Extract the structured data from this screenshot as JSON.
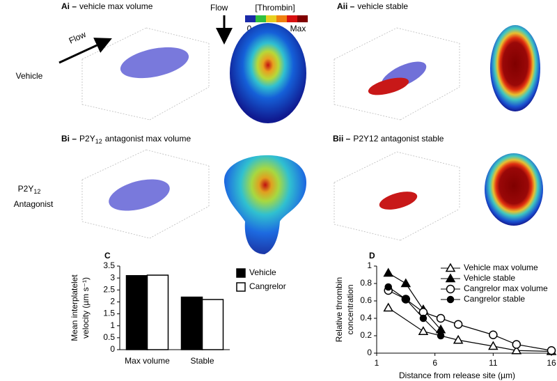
{
  "figure": {
    "panels": [
      {
        "label": "Ai –",
        "title": "vehicle max volume"
      },
      {
        "label": "Aii –",
        "title": "vehicle stable"
      },
      {
        "label": "Bi –",
        "title": "P2Y",
        "title_sub": "12",
        "title_rest": "antagonist max volume"
      },
      {
        "label": "Bii –",
        "title": "P2Y12 antagonist stable"
      }
    ],
    "flow_label": "Flow",
    "colorbar": {
      "title": "[Thrombin]",
      "min_label": "0",
      "max_label": "Max"
    },
    "rows": [
      {
        "label": "Vehicle"
      },
      {
        "label": "P2Y",
        "label_sub": "12",
        "label_line2": "Antagonist"
      }
    ]
  },
  "chart_data": [
    {
      "type": "bar",
      "panel": "C",
      "categories": [
        "Max volume",
        "Stable"
      ],
      "series": [
        {
          "name": "Vehicle",
          "color": "#000000",
          "values": [
            3.1,
            2.2
          ]
        },
        {
          "name": "Cangrelor",
          "color": "#ffffff",
          "values": [
            3.12,
            2.1
          ]
        }
      ],
      "y_label": [
        "Mean interplatelet",
        "velocity (µm s⁻¹)"
      ],
      "ylim": [
        0,
        3.5
      ],
      "yticks": [
        0,
        0.5,
        1,
        1.5,
        2,
        2.5,
        3,
        3.5
      ],
      "legend": "upper right"
    },
    {
      "type": "line",
      "panel": "D",
      "series": [
        {
          "name": "Vehicle max volume",
          "color": "#000000",
          "marker": "triangle-open",
          "x": [
            2,
            5,
            8,
            11,
            13,
            16
          ],
          "values": [
            0.52,
            0.25,
            0.15,
            0.08,
            0.03,
            0.02
          ]
        },
        {
          "name": "Vehicle stable",
          "color": "#000000",
          "marker": "triangle-filled",
          "x": [
            2,
            3.5,
            5,
            6.5
          ],
          "values": [
            0.92,
            0.8,
            0.5,
            0.27
          ]
        },
        {
          "name": "Cangrelor max volume",
          "color": "#000000",
          "marker": "circle-open",
          "x": [
            2,
            3.5,
            5,
            6.5,
            8,
            11,
            13,
            16
          ],
          "values": [
            0.72,
            0.62,
            0.47,
            0.4,
            0.33,
            0.21,
            0.1,
            0.03
          ]
        },
        {
          "name": "Cangrelor stable",
          "color": "#000000",
          "marker": "circle-filled",
          "x": [
            2,
            3.5,
            5,
            6.5
          ],
          "values": [
            0.76,
            0.62,
            0.4,
            0.2
          ]
        }
      ],
      "x_label": "Distance from release site (µm)",
      "y_label": [
        "Relative thrombin",
        "concentration"
      ],
      "xlim": [
        1,
        16
      ],
      "xticks": [
        1,
        6,
        11,
        16
      ],
      "ylim": [
        0,
        1
      ],
      "yticks": [
        0,
        0.2,
        0.4,
        0.6,
        0.8,
        1
      ],
      "legend": "upper right"
    }
  ]
}
